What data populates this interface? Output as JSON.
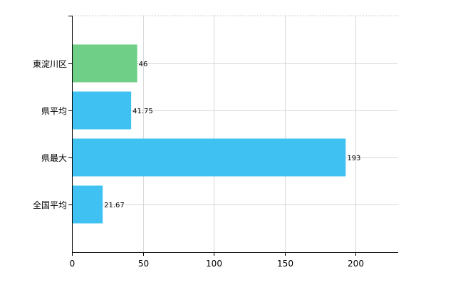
{
  "chart_data": {
    "type": "bar",
    "orientation": "horizontal",
    "categories": [
      "東淀川区",
      "県平均",
      "県最大",
      "全国平均"
    ],
    "values": [
      46,
      41.75,
      193,
      21.67
    ],
    "value_labels": [
      "46",
      "41.75",
      "193",
      "21.67"
    ],
    "colors": [
      "#6fcf86",
      "#3fc1f2",
      "#3fc1f2",
      "#3fc1f2"
    ],
    "xlim": [
      0,
      230
    ],
    "xticks": [
      0,
      50,
      100,
      150,
      200
    ],
    "xtick_labels": [
      "0",
      "50",
      "100",
      "150",
      "200"
    ],
    "grid": true,
    "title": "",
    "xlabel": "",
    "ylabel": ""
  }
}
